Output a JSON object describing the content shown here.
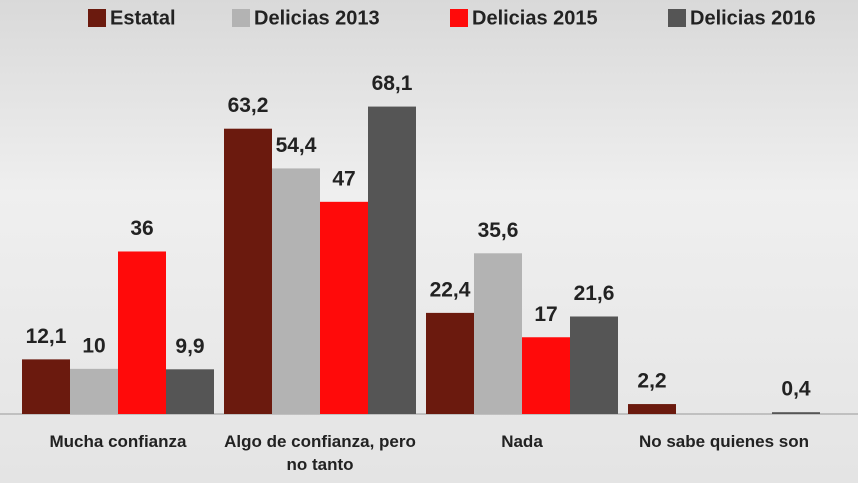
{
  "chart_data": {
    "type": "bar",
    "categories": [
      "Mucha confianza",
      "Algo de confianza, pero no tanto",
      "Nada",
      "No sabe quienes son"
    ],
    "series": [
      {
        "name": "Estatal",
        "color": "#6b1a0e",
        "values": [
          12.1,
          63.2,
          22.4,
          2.2
        ],
        "value_labels": [
          "12,1",
          "63,2",
          "22,4",
          "2,2"
        ]
      },
      {
        "name": "Delicias 2013",
        "color": "#b3b3b3",
        "values": [
          10,
          54.4,
          35.6,
          null
        ],
        "value_labels": [
          "10",
          "54,4",
          "35,6",
          null
        ]
      },
      {
        "name": "Delicias 2015",
        "color": "#ff0a0a",
        "values": [
          36,
          47,
          17,
          null
        ],
        "value_labels": [
          "36",
          "47",
          "17",
          null
        ]
      },
      {
        "name": "Delicias 2016",
        "color": "#555555",
        "values": [
          9.9,
          68.1,
          21.6,
          0.4
        ],
        "value_labels": [
          "9,9",
          "68,1",
          "21,6",
          "0,4"
        ]
      }
    ],
    "ylim": [
      0,
      70
    ],
    "legend": "top"
  }
}
